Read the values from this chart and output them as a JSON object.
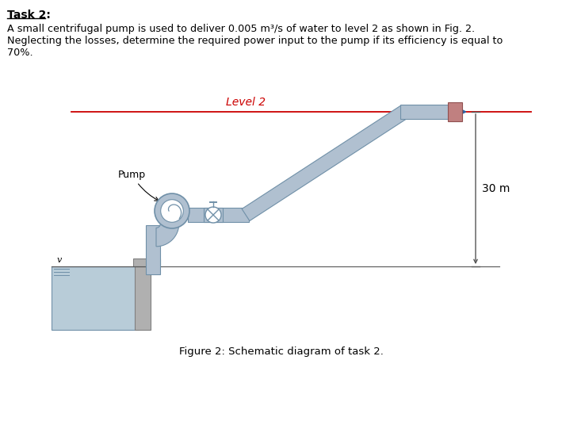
{
  "title_text": "Task 2:",
  "body_line1": "A small centrifugal pump is used to deliver 0.005 m³/s of water to level 2 as shown in Fig. 2.",
  "body_line2": "Neglecting the losses, determine the required power input to the pump if its efficiency is equal to",
  "body_line3": "70%.",
  "level2_label": "Level 2",
  "height_label": "30 m",
  "pump_label": "Pump",
  "figure_caption": "Figure 2: Schematic diagram of task 2.",
  "pipe_color": "#b0c0d0",
  "pipe_edge_color": "#7090a8",
  "pipe_inner_color": "#d8e4ec",
  "level_line_color": "#cc0000",
  "water_color": "#b8ccd8",
  "bg_color": "#ffffff",
  "text_color": "#000000",
  "dim_line_color": "#555555",
  "wall_color": "#b0b0b0",
  "end_cap_color": "#c08080",
  "arrow_color": "#3060a0"
}
